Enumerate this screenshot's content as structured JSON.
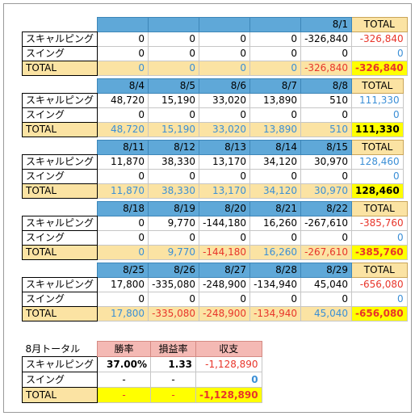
{
  "labels": {
    "scalping": "スキャルピング",
    "swing": "スイング",
    "total": "TOTAL"
  },
  "weeks": [
    {
      "dates": [
        "",
        "",
        "",
        "",
        "8/1"
      ],
      "scalping": [
        "0",
        "0",
        "0",
        "0",
        "-326,840"
      ],
      "scalping_total": "-326,840",
      "swing": [
        "0",
        "0",
        "0",
        "0",
        "0"
      ],
      "swing_total": "0",
      "totals": [
        "0",
        "0",
        "0",
        "0",
        "-326,840"
      ],
      "grand_total": "-326,840"
    },
    {
      "dates": [
        "8/4",
        "8/5",
        "8/6",
        "8/7",
        "8/8"
      ],
      "scalping": [
        "48,720",
        "15,190",
        "33,020",
        "13,890",
        "510"
      ],
      "scalping_total": "111,330",
      "swing": [
        "0",
        "0",
        "0",
        "0",
        "0"
      ],
      "swing_total": "0",
      "totals": [
        "48,720",
        "15,190",
        "33,020",
        "13,890",
        "510"
      ],
      "grand_total": "111,330"
    },
    {
      "dates": [
        "8/11",
        "8/12",
        "8/13",
        "8/14",
        "8/15"
      ],
      "scalping": [
        "11,870",
        "38,330",
        "13,170",
        "34,120",
        "30,970"
      ],
      "scalping_total": "128,460",
      "swing": [
        "0",
        "0",
        "0",
        "0",
        "0"
      ],
      "swing_total": "0",
      "totals": [
        "11,870",
        "38,330",
        "13,170",
        "34,120",
        "30,970"
      ],
      "grand_total": "128,460"
    },
    {
      "dates": [
        "8/18",
        "8/19",
        "8/20",
        "8/21",
        "8/22"
      ],
      "scalping": [
        "0",
        "9,770",
        "-144,180",
        "16,260",
        "-267,610"
      ],
      "scalping_total": "-385,760",
      "swing": [
        "0",
        "0",
        "0",
        "0",
        "0"
      ],
      "swing_total": "0",
      "totals": [
        "0",
        "9,770",
        "-144,180",
        "16,260",
        "-267,610"
      ],
      "grand_total": "-385,760"
    },
    {
      "dates": [
        "8/25",
        "8/26",
        "8/27",
        "8/28",
        "8/29"
      ],
      "scalping": [
        "17,800",
        "-335,080",
        "-248,900",
        "-134,940",
        "45,040"
      ],
      "scalping_total": "-656,080",
      "swing": [
        "0",
        "0",
        "0",
        "0",
        "0"
      ],
      "swing_total": "0",
      "totals": [
        "17,800",
        "-335,080",
        "-248,900",
        "-134,940",
        "45,040"
      ],
      "grand_total": "-656,080"
    }
  ],
  "summary": {
    "title": "8月トータル",
    "headers": [
      "勝率",
      "損益率",
      "収支"
    ],
    "scalping": [
      "37.00%",
      "1.33",
      "-1,128,890"
    ],
    "swing": [
      "-",
      "-",
      "0"
    ],
    "total": [
      "-",
      "-",
      "-1,128,890"
    ]
  },
  "colors": {
    "date_header": "#5fa8d8",
    "total_row": "#fbe3a3",
    "highlight": "#ffff00",
    "positive": "#3b8fd6",
    "negative": "#e8352a",
    "summary_header": "#f4b9b4"
  }
}
